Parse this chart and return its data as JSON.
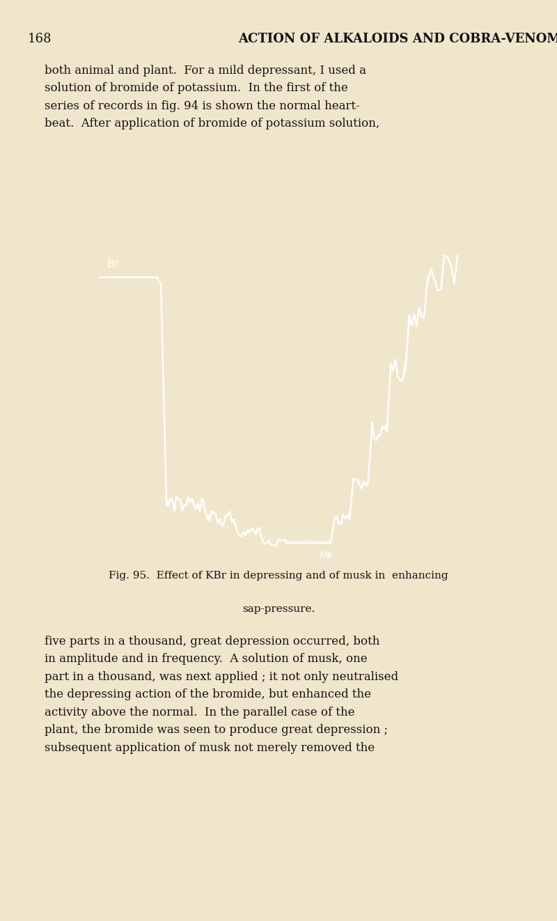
{
  "page_bg": "#f0e6cc",
  "page_number": "168",
  "header_text": "ACTION OF ALKALOIDS AND COBRA-VENOM",
  "body_text_top": "both animal and plant.  For a mild depressant, I used a\nsolution of bromide of potassium.  In the first of the\nseries of records in fig. 94 is shown the normal heart-\nbeat.  After application of bromide of potassium solution,",
  "figure_caption_line1": "Fig. 95.  Effect of KBr in depressing and of musk in  enhancing",
  "figure_caption_line2": "sap-pressure.",
  "body_text_bottom": "five parts in a thousand, great depression occurred, both\nin amplitude and in frequency.  A solution of musk, one\npart in a thousand, was next applied ; it not only neutralised\nthe depressing action of the bromide, but enhanced the\nactivity above the normal.  In the parallel case of the\nplant, the bromide was seen to produce great depression ;\nsubsequent application of musk not merely removed the",
  "image_bg": "#080808",
  "line_color": "#ffffff",
  "label_br": "Br",
  "label_mk": "Mk"
}
